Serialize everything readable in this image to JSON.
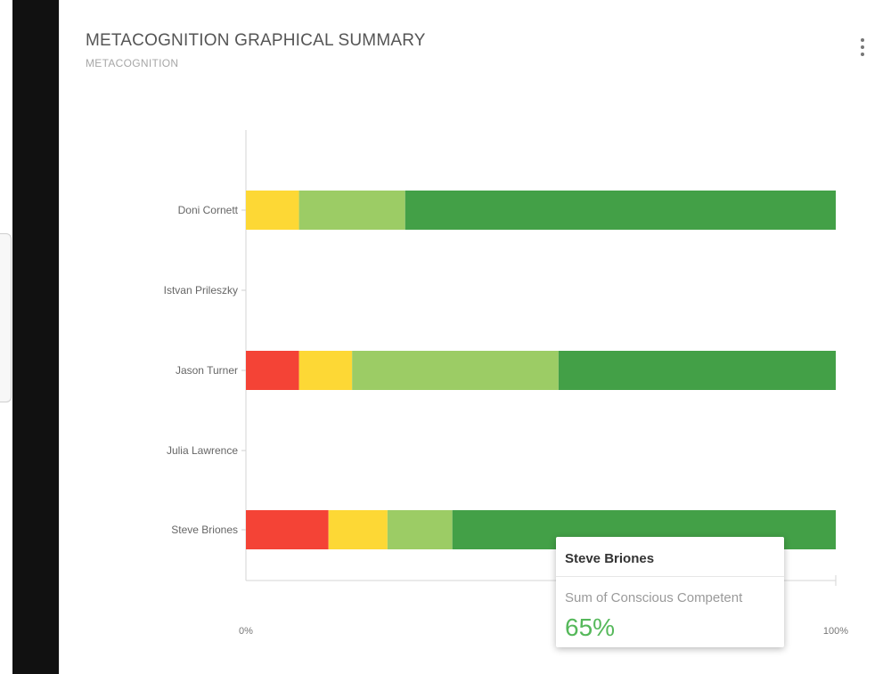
{
  "card": {
    "title": "METACOGNITION GRAPHICAL SUMMARY",
    "subtitle": "METACOGNITION",
    "menu_icon": "more-vertical-icon"
  },
  "chart_data": {
    "type": "bar",
    "orientation": "horizontal",
    "stacked": true,
    "normalized_percent": true,
    "categories": [
      "Doni Cornett",
      "Istvan Prileszky",
      "Jason  Turner",
      "Julia Lawrence",
      "Steve Briones"
    ],
    "series": [
      {
        "color": "#f44336",
        "values": [
          0,
          0,
          9,
          0,
          14
        ]
      },
      {
        "color": "#fdd835",
        "values": [
          9,
          0,
          9,
          0,
          10
        ]
      },
      {
        "color": "#9ccc65",
        "values": [
          18,
          0,
          35,
          0,
          11
        ]
      },
      {
        "name": "Conscious Competent",
        "color": "#43a047",
        "values": [
          73,
          0,
          47,
          0,
          65
        ]
      }
    ],
    "xticks": [
      "0%",
      "100%"
    ],
    "xlim": [
      0,
      100
    ],
    "grid": false,
    "tooltip": {
      "title": "Steve Briones",
      "label": "Sum of Conscious Competent",
      "value": "65%",
      "value_color": "#55b85a"
    }
  }
}
